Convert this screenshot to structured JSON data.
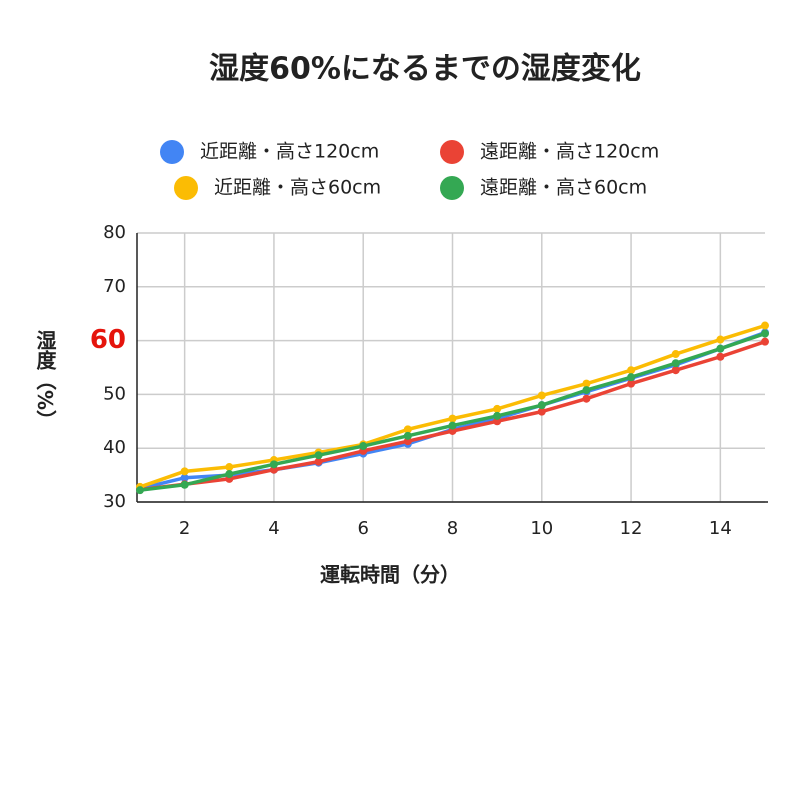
{
  "chart_data": {
    "type": "line",
    "title": "湿度60%になるまでの湿度変化",
    "x_label": "運転時間（分）",
    "y_label": "湿度（%）",
    "x": [
      1,
      2,
      3,
      4,
      5,
      6,
      7,
      8,
      9,
      10,
      11,
      12,
      13,
      14,
      15
    ],
    "series": [
      {
        "name": "近距離・高さ120cm",
        "color": "#4285f4",
        "values": [
          32.5,
          34.5,
          35,
          36,
          37.3,
          39,
          40.8,
          43.5,
          45.5,
          48,
          50.5,
          53,
          55.5,
          58.5,
          61.5
        ]
      },
      {
        "name": "遠距離・高さ120cm",
        "color": "#ea4335",
        "values": [
          32.3,
          33.3,
          34.3,
          36,
          37.5,
          39.5,
          41.3,
          43.2,
          45,
          46.8,
          49.2,
          52,
          54.5,
          57,
          59.8
        ]
      },
      {
        "name": "近距離・高さ60cm",
        "color": "#fbbc04",
        "values": [
          32.8,
          35.7,
          36.5,
          37.8,
          39.2,
          40.7,
          43.5,
          45.5,
          47.3,
          49.8,
          52,
          54.5,
          57.5,
          60.2,
          62.8
        ]
      },
      {
        "name": "遠距離・高さ60cm",
        "color": "#34a853",
        "values": [
          32.2,
          33.2,
          35.2,
          37,
          38.7,
          40.4,
          42.3,
          44.2,
          46,
          48,
          50.8,
          53.2,
          55.8,
          58.5,
          61.3
        ]
      }
    ],
    "xlim": [
      1,
      15
    ],
    "xticks": [
      2,
      4,
      6,
      8,
      10,
      12,
      14
    ],
    "ylim": [
      30,
      80
    ],
    "yticks": [
      30,
      40,
      50,
      60,
      70,
      80
    ],
    "grid": true,
    "highlight": {
      "ytick": 60,
      "color": "#e5140c"
    }
  }
}
